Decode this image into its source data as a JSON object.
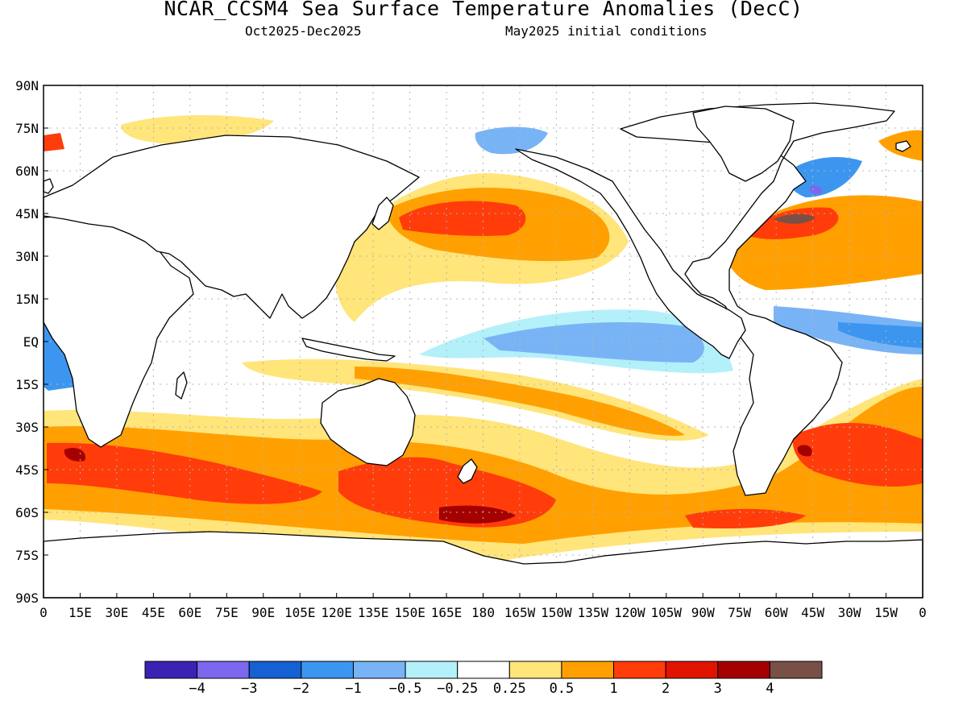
{
  "title": "NCAR_CCSM4 Sea Surface Temperature Anomalies (DecC)",
  "subtitle_left": "Oct2025-Dec2025",
  "subtitle_right": "May2025 initial conditions",
  "lat_labels": [
    "90N",
    "75N",
    "60N",
    "45N",
    "30N",
    "15N",
    "EQ",
    "15S",
    "30S",
    "45S",
    "60S",
    "75S",
    "90S"
  ],
  "lon_labels": [
    "0",
    "15E",
    "30E",
    "45E",
    "60E",
    "75E",
    "90E",
    "105E",
    "120E",
    "135E",
    "150E",
    "165E",
    "180",
    "165W",
    "150W",
    "135W",
    "120W",
    "105W",
    "90W",
    "75W",
    "60W",
    "45W",
    "30W",
    "15W",
    "0"
  ],
  "colorbar": {
    "colors": [
      "#3c22b4",
      "#7b68ee",
      "#1560d2",
      "#3c96f0",
      "#78b4f5",
      "#b4f0fa",
      "#ffffff",
      "#ffe57a",
      "#ffa000",
      "#ff3c0a",
      "#e11400",
      "#a50000",
      "#785046"
    ],
    "labels": [
      "-4",
      "-3",
      "-2",
      "-1",
      "-0.5",
      "-0.25",
      "0.25",
      "0.5",
      "1",
      "2",
      "3",
      "4"
    ]
  },
  "palette": {
    "land": "#ffffff",
    "coast": "#000000",
    "frame": "#000000",
    "grid": "#b4b4b4"
  }
}
